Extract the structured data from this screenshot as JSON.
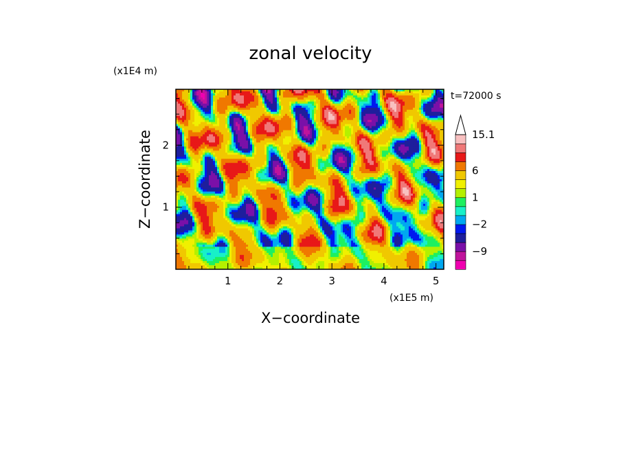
{
  "chart_data": {
    "type": "heatmap",
    "title": "zonal velocity",
    "xlabel": "X−coordinate",
    "ylabel": "Z−coordinate",
    "x_scale_label": "(x1E5 m)",
    "y_scale_label": "(x1E4 m)",
    "time_label": "t=72000 s",
    "xlim": [
      0,
      5.15
    ],
    "ylim": [
      0,
      2.9
    ],
    "x_ticks": [
      1,
      2,
      3,
      4,
      5
    ],
    "y_ticks": [
      1,
      2
    ],
    "x_minor_step": 0.25,
    "y_minor_step": 0.25,
    "colorbar": {
      "levels": [
        -15,
        -12,
        -9,
        -6,
        -3,
        -2,
        -1,
        0,
        1,
        2,
        3,
        6,
        9,
        12,
        15.1
      ],
      "labeled": [
        15.1,
        6,
        1,
        -2,
        -9
      ],
      "colors": [
        "#f000b0",
        "#c0149c",
        "#7a10a8",
        "#1e1e9c",
        "#0018f0",
        "#00a8f0",
        "#18f0c8",
        "#1ef060",
        "#b4f000",
        "#f0f000",
        "#f0c800",
        "#f07800",
        "#e81818",
        "#f07878",
        "#f8c0c0"
      ],
      "extend": "max"
    }
  }
}
